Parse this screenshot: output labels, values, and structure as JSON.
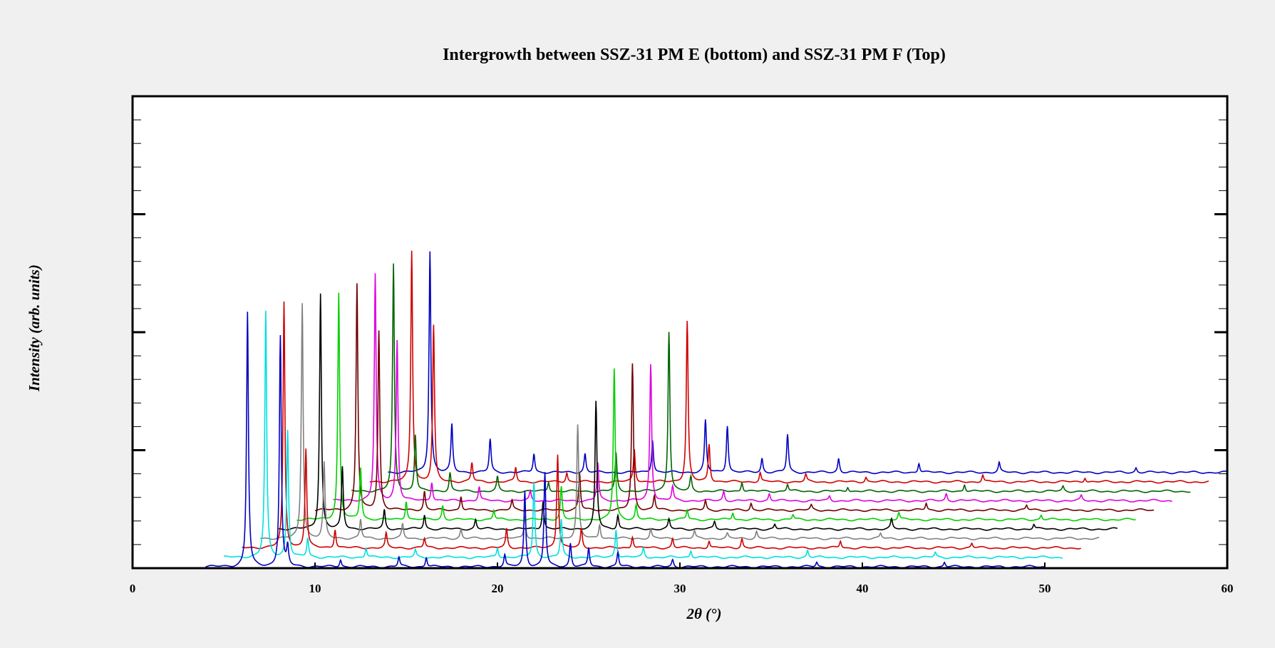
{
  "chart_data": {
    "type": "line",
    "title": "Intergrowth between SSZ-31 PM E (bottom) and SSZ-31 PM F (Top)",
    "xlabel": "2θ (°)",
    "ylabel": "Intensity (arb. units)",
    "xlim": [
      0,
      60
    ],
    "ylim": [
      0,
      100
    ],
    "x_ticks": [
      0,
      10,
      20,
      30,
      40,
      50,
      60
    ],
    "x_tick_labels": [
      "0",
      "10",
      "20",
      "30",
      "40",
      "50",
      "60"
    ],
    "y_tick_labels_shown": false,
    "grid": false,
    "legend": false,
    "offset_style": "waterfall",
    "series_x_range": [
      4,
      50
    ],
    "series": [
      {
        "color": "#0000c0",
        "x_shift": 0.0,
        "y_offset": 0,
        "peaks": [
          [
            6.3,
            54
          ],
          [
            8.1,
            49
          ],
          [
            8.5,
            4
          ],
          [
            11.4,
            1.5
          ],
          [
            14.6,
            2
          ],
          [
            16.1,
            2
          ],
          [
            20.4,
            2.5
          ],
          [
            21.5,
            16
          ],
          [
            22.6,
            20
          ],
          [
            24.0,
            5
          ],
          [
            25.0,
            4
          ],
          [
            26.6,
            3
          ],
          [
            29.6,
            1.5
          ],
          [
            37.5,
            1
          ],
          [
            44.5,
            1
          ]
        ]
      },
      {
        "color": "#00e0e0",
        "x_shift": 1.0,
        "y_offset": 2,
        "peaks": [
          [
            6.3,
            52
          ],
          [
            7.5,
            27
          ],
          [
            8.6,
            4
          ],
          [
            11.8,
            2
          ],
          [
            14.5,
            1.5
          ],
          [
            19.0,
            2
          ],
          [
            21.0,
            16
          ],
          [
            22.5,
            8
          ],
          [
            25.5,
            6
          ],
          [
            27.0,
            2
          ],
          [
            29.6,
            1.5
          ],
          [
            36.0,
            1.5
          ],
          [
            43.0,
            1
          ]
        ]
      },
      {
        "color": "#d00000",
        "x_shift": 2.0,
        "y_offset": 4,
        "peaks": [
          [
            6.3,
            52
          ],
          [
            7.5,
            21
          ],
          [
            9.1,
            4
          ],
          [
            11.9,
            3
          ],
          [
            14.0,
            2
          ],
          [
            18.5,
            4
          ],
          [
            21.3,
            20
          ],
          [
            22.6,
            4
          ],
          [
            25.4,
            2.5
          ],
          [
            27.6,
            2
          ],
          [
            29.6,
            1.5
          ],
          [
            31.4,
            2
          ],
          [
            36.8,
            1.5
          ],
          [
            44.0,
            1
          ]
        ]
      },
      {
        "color": "#808080",
        "x_shift": 3.0,
        "y_offset": 6,
        "peaks": [
          [
            6.3,
            50
          ],
          [
            7.5,
            16
          ],
          [
            9.5,
            4
          ],
          [
            11.8,
            3
          ],
          [
            15.0,
            2
          ],
          [
            18.5,
            5
          ],
          [
            21.4,
            24
          ],
          [
            22.6,
            3
          ],
          [
            25.4,
            2
          ],
          [
            27.8,
            1.5
          ],
          [
            29.6,
            1
          ],
          [
            31.2,
            1.5
          ],
          [
            38.0,
            1
          ]
        ]
      },
      {
        "color": "#000000",
        "x_shift": 4.0,
        "y_offset": 8,
        "peaks": [
          [
            6.3,
            50
          ],
          [
            7.5,
            13
          ],
          [
            9.8,
            4
          ],
          [
            12.0,
            3
          ],
          [
            14.8,
            2
          ],
          [
            18.5,
            6
          ],
          [
            21.4,
            27
          ],
          [
            22.6,
            3
          ],
          [
            25.4,
            2
          ],
          [
            27.9,
            1.5
          ],
          [
            31.2,
            1
          ],
          [
            37.6,
            2
          ],
          [
            45.4,
            1
          ]
        ]
      },
      {
        "color": "#00d000",
        "x_shift": 5.0,
        "y_offset": 10,
        "peaks": [
          [
            6.3,
            48
          ],
          [
            7.5,
            11
          ],
          [
            10.0,
            4
          ],
          [
            12.0,
            3
          ],
          [
            14.8,
            2
          ],
          [
            18.5,
            7
          ],
          [
            21.4,
            32
          ],
          [
            22.6,
            3
          ],
          [
            25.4,
            2
          ],
          [
            27.9,
            1.5
          ],
          [
            31.2,
            1
          ],
          [
            37.0,
            1.5
          ],
          [
            44.8,
            1
          ]
        ]
      },
      {
        "color": "#700000",
        "x_shift": 6.0,
        "y_offset": 12,
        "peaks": [
          [
            6.3,
            48
          ],
          [
            7.5,
            38
          ],
          [
            10.0,
            4
          ],
          [
            12.0,
            3
          ],
          [
            14.8,
            2
          ],
          [
            18.5,
            8
          ],
          [
            21.4,
            31
          ],
          [
            22.6,
            3
          ],
          [
            25.4,
            2
          ],
          [
            27.9,
            1.5
          ],
          [
            31.2,
            1
          ],
          [
            37.5,
            1.5
          ],
          [
            43.0,
            1
          ]
        ]
      },
      {
        "color": "#e000e0",
        "x_shift": 7.0,
        "y_offset": 14,
        "peaks": [
          [
            6.3,
            48
          ],
          [
            7.5,
            34
          ],
          [
            9.4,
            4
          ],
          [
            12.0,
            3
          ],
          [
            14.8,
            2
          ],
          [
            18.5,
            8
          ],
          [
            21.4,
            29
          ],
          [
            22.6,
            3
          ],
          [
            25.4,
            2
          ],
          [
            27.9,
            1.5
          ],
          [
            31.2,
            1
          ],
          [
            37.6,
            1.5
          ],
          [
            45.0,
            1
          ]
        ]
      },
      {
        "color": "#006400",
        "x_shift": 8.0,
        "y_offset": 16,
        "peaks": [
          [
            6.3,
            48
          ],
          [
            7.5,
            12
          ],
          [
            9.4,
            4
          ],
          [
            12.0,
            3
          ],
          [
            14.8,
            2
          ],
          [
            18.5,
            8
          ],
          [
            21.4,
            34
          ],
          [
            22.6,
            3
          ],
          [
            25.4,
            2
          ],
          [
            27.9,
            1.5
          ],
          [
            31.2,
            1
          ],
          [
            37.6,
            1.5
          ],
          [
            43.0,
            1
          ]
        ]
      },
      {
        "color": "#d00000",
        "x_shift": 9.0,
        "y_offset": 18,
        "peaks": [
          [
            6.3,
            49
          ],
          [
            7.5,
            33
          ],
          [
            9.6,
            4
          ],
          [
            12.0,
            3
          ],
          [
            14.8,
            2
          ],
          [
            18.5,
            7
          ],
          [
            21.4,
            34
          ],
          [
            22.6,
            8
          ],
          [
            25.4,
            2
          ],
          [
            27.9,
            1.5
          ],
          [
            31.2,
            1
          ],
          [
            37.6,
            1.5
          ],
          [
            43.2,
            1
          ]
        ]
      },
      {
        "color": "#0000c0",
        "x_shift": 10.0,
        "y_offset": 20,
        "peaks": [
          [
            6.3,
            47
          ],
          [
            7.5,
            10
          ],
          [
            9.6,
            7
          ],
          [
            12.0,
            4
          ],
          [
            14.8,
            4
          ],
          [
            18.5,
            7
          ],
          [
            21.4,
            11
          ],
          [
            22.6,
            10
          ],
          [
            24.5,
            3
          ],
          [
            25.9,
            8
          ],
          [
            28.7,
            3
          ],
          [
            33.1,
            2
          ],
          [
            37.5,
            2
          ],
          [
            45.0,
            1
          ]
        ]
      }
    ]
  }
}
